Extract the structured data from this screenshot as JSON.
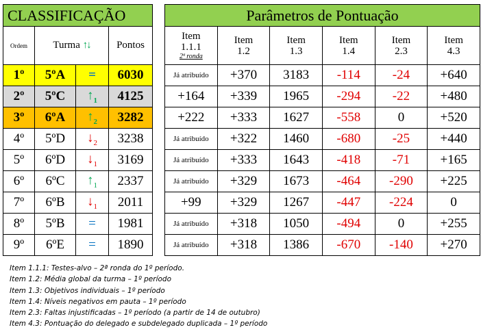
{
  "classification": {
    "title": "CLASSIFICAÇÃO",
    "headers": {
      "rank": "Ordem",
      "class": "Turma",
      "trend": "↑↓",
      "points": "Pontos"
    },
    "rows": [
      {
        "rank": "1º",
        "class": "5ºA",
        "trend": "=",
        "trend_sub": null,
        "points": "6030"
      },
      {
        "rank": "2º",
        "class": "5ºC",
        "trend": "↑",
        "trend_sub": "1",
        "points": "4125"
      },
      {
        "rank": "3º",
        "class": "6ºA",
        "trend": "↑",
        "trend_sub": "2",
        "points": "3282"
      },
      {
        "rank": "4º",
        "class": "5ºD",
        "trend": "↓",
        "trend_sub": "2",
        "points": "3238"
      },
      {
        "rank": "5º",
        "class": "6ºD",
        "trend": "↓",
        "trend_sub": "1",
        "points": "3169"
      },
      {
        "rank": "6º",
        "class": "6ºC",
        "trend": "↑",
        "trend_sub": "1",
        "points": "2337"
      },
      {
        "rank": "7º",
        "class": "6ºB",
        "trend": "↓",
        "trend_sub": "1",
        "points": "2011"
      },
      {
        "rank": "8º",
        "class": "5ºB",
        "trend": "=",
        "trend_sub": null,
        "points": "1981"
      },
      {
        "rank": "9º",
        "class": "6ºE",
        "trend": "=",
        "trend_sub": null,
        "points": "1890"
      }
    ]
  },
  "parameters": {
    "title": "Parâmetros de Pontuação",
    "headers": [
      {
        "label": "Item 1.1.1",
        "note": "2ª ronda"
      },
      {
        "label": "Item 1.2",
        "note": null
      },
      {
        "label": "Item 1.3",
        "note": null
      },
      {
        "label": "Item 1.4",
        "note": null
      },
      {
        "label": "Item 2.3",
        "note": null
      },
      {
        "label": "Item 4.3",
        "note": null
      }
    ],
    "rows": [
      [
        "Já atribuído",
        "+370",
        "3183",
        "-114",
        "-24",
        "+640"
      ],
      [
        "+164",
        "+339",
        "1965",
        "-294",
        "-22",
        "+480"
      ],
      [
        "+222",
        "+333",
        "1627",
        "-558",
        "0",
        "+520"
      ],
      [
        "Já atribuído",
        "+322",
        "1460",
        "-680",
        "-25",
        "+440"
      ],
      [
        "Já atribuído",
        "+333",
        "1643",
        "-418",
        "-71",
        "+165"
      ],
      [
        "Já atribuído",
        "+329",
        "1673",
        "-464",
        "-290",
        "+225"
      ],
      [
        "+99",
        "+329",
        "1267",
        "-447",
        "-224",
        "0"
      ],
      [
        "Já atribuído",
        "+318",
        "1050",
        "-494",
        "0",
        "+255"
      ],
      [
        "Já atribuído",
        "+318",
        "1386",
        "-670",
        "-140",
        "+270"
      ]
    ]
  },
  "footnotes": [
    "Item 1.1.1: Testes-alvo – 2ª ronda do 1º período.",
    "Item 1.2: Média global da turma – 1º período",
    "Item 1.3: Objetivos individuais – 1º período",
    "Item 1.4: Níveis negativos em pauta – 1º período",
    "Item 2.3: Faltas injustificadas – 1º período (a partir de 14 de outubro)",
    "Item 4.3: Pontuação do delegado e subdelegado duplicada – 1º período"
  ]
}
